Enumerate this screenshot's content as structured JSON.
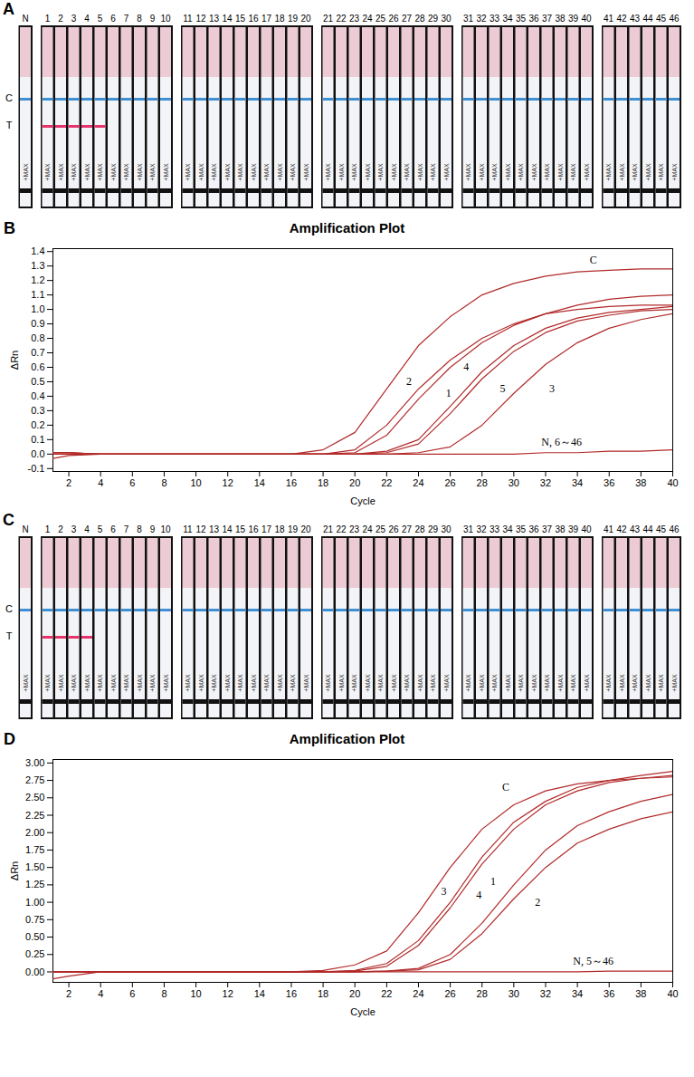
{
  "chart_data": [
    {
      "panel": "A",
      "type": "lateral_flow_strips",
      "line_labels": [
        "C",
        "T"
      ],
      "strip_text": "+MAX",
      "groups": [
        [
          "N"
        ],
        [
          "1",
          "2",
          "3",
          "4",
          "5",
          "6",
          "7",
          "8",
          "9",
          "10"
        ],
        [
          "11",
          "12",
          "13",
          "14",
          "15",
          "16",
          "17",
          "18",
          "19",
          "20"
        ],
        [
          "21",
          "22",
          "23",
          "24",
          "25",
          "26",
          "27",
          "28",
          "29",
          "30"
        ],
        [
          "31",
          "32",
          "33",
          "34",
          "35",
          "36",
          "37",
          "38",
          "39",
          "40"
        ],
        [
          "41",
          "42",
          "43",
          "44",
          "45",
          "46"
        ]
      ],
      "positive": [
        "1",
        "2",
        "3",
        "4",
        "5"
      ]
    },
    {
      "panel": "B",
      "type": "line",
      "title": "Amplification Plot",
      "x_label": "Cycle",
      "y_label": "ΔRn",
      "x": [
        1,
        2,
        4,
        6,
        8,
        10,
        12,
        14,
        16,
        18,
        20,
        22,
        24,
        26,
        28,
        30,
        32,
        34,
        36,
        38,
        40
      ],
      "xlim": [
        1,
        40
      ],
      "xticks": [
        2,
        4,
        6,
        8,
        10,
        12,
        14,
        16,
        18,
        20,
        22,
        24,
        26,
        28,
        30,
        32,
        34,
        36,
        38,
        40
      ],
      "ylim": [
        -0.12,
        1.42
      ],
      "yticks": [
        -0.1,
        {
          "value": 0,
          "label": "0.0"
        },
        0.1,
        0.2,
        0.3,
        0.4,
        0.5,
        0.6,
        0.7,
        0.8,
        0.9,
        {
          "value": 1,
          "label": "1.0"
        },
        1.1,
        1.2,
        1.3,
        1.4
      ],
      "series": [
        {
          "name": "C",
          "color": "#b22a2a",
          "label_x": 35,
          "label_y": 1.34,
          "values": [
            -0.03,
            -0.01,
            0,
            0,
            0,
            0,
            0,
            0,
            0,
            0.03,
            0.15,
            0.45,
            0.75,
            0.95,
            1.1,
            1.18,
            1.23,
            1.26,
            1.27,
            1.28,
            1.28
          ]
        },
        {
          "name": "2",
          "color": "#b22a2a",
          "label_x": 23.4,
          "label_y": 0.5,
          "values": [
            0.01,
            0.01,
            0,
            0,
            0,
            0,
            0,
            0,
            0,
            0,
            0.03,
            0.2,
            0.45,
            0.65,
            0.8,
            0.9,
            0.97,
            1.0,
            1.02,
            1.03,
            1.03
          ]
        },
        {
          "name": "1",
          "color": "#b22a2a",
          "label_x": 25.9,
          "label_y": 0.42,
          "values": [
            0.01,
            0.01,
            0,
            0,
            0,
            0,
            0,
            0,
            0,
            0,
            0.01,
            0.13,
            0.38,
            0.6,
            0.77,
            0.89,
            0.97,
            1.03,
            1.07,
            1.09,
            1.1
          ]
        },
        {
          "name": "4",
          "color": "#b22a2a",
          "label_x": 27.0,
          "label_y": 0.6,
          "values": [
            0,
            0,
            0,
            0,
            0,
            0,
            0,
            0,
            0,
            0,
            0,
            0.02,
            0.1,
            0.33,
            0.57,
            0.75,
            0.87,
            0.94,
            0.98,
            1.0,
            1.02
          ]
        },
        {
          "name": "5",
          "color": "#b22a2a",
          "label_x": 29.3,
          "label_y": 0.45,
          "values": [
            0,
            0,
            0,
            0,
            0,
            0,
            0,
            0,
            0,
            0,
            0,
            0.01,
            0.07,
            0.28,
            0.52,
            0.71,
            0.84,
            0.92,
            0.96,
            0.99,
            1.0
          ]
        },
        {
          "name": "3",
          "color": "#b22a2a",
          "label_x": 32.4,
          "label_y": 0.45,
          "values": [
            0,
            0,
            0,
            0,
            0,
            0,
            0,
            0,
            0,
            0,
            0,
            0,
            0.01,
            0.05,
            0.2,
            0.42,
            0.62,
            0.77,
            0.87,
            0.93,
            0.97
          ]
        },
        {
          "name": "N, 6～46",
          "color": "#b22a2a",
          "label_x": 33,
          "label_y": 0.08,
          "values": [
            0.01,
            0.01,
            0,
            0,
            0,
            0,
            0,
            0,
            0,
            0,
            0,
            0,
            0,
            0,
            0,
            0,
            0.01,
            0.01,
            0.02,
            0.02,
            0.03
          ]
        }
      ]
    },
    {
      "panel": "C",
      "type": "lateral_flow_strips",
      "line_labels": [
        "C",
        "T"
      ],
      "strip_text": "+MAX",
      "groups": [
        [
          "N"
        ],
        [
          "1",
          "2",
          "3",
          "4",
          "5",
          "6",
          "7",
          "8",
          "9",
          "10"
        ],
        [
          "11",
          "12",
          "13",
          "14",
          "15",
          "16",
          "17",
          "18",
          "19",
          "20"
        ],
        [
          "21",
          "22",
          "23",
          "24",
          "25",
          "26",
          "27",
          "28",
          "29",
          "30"
        ],
        [
          "31",
          "32",
          "33",
          "34",
          "35",
          "36",
          "37",
          "38",
          "39",
          "40"
        ],
        [
          "41",
          "42",
          "43",
          "44",
          "45",
          "46"
        ]
      ],
      "positive": [
        "1",
        "2",
        "3",
        "4"
      ]
    },
    {
      "panel": "D",
      "type": "line",
      "title": "Amplification Plot",
      "x_label": "Cycle",
      "y_label": "ΔRn",
      "x": [
        1,
        2,
        4,
        6,
        8,
        10,
        12,
        14,
        16,
        18,
        20,
        22,
        24,
        26,
        28,
        30,
        32,
        34,
        36,
        38,
        40
      ],
      "xlim": [
        1,
        40
      ],
      "xticks": [
        2,
        4,
        6,
        8,
        10,
        12,
        14,
        16,
        18,
        20,
        22,
        24,
        26,
        28,
        30,
        32,
        34,
        36,
        38,
        40
      ],
      "ylim": [
        -0.15,
        3.05
      ],
      "yticks": [
        {
          "value": 0,
          "label": "0.00"
        },
        0.25,
        {
          "value": 0.5,
          "label": "0.50"
        },
        0.75,
        {
          "value": 1,
          "label": "1.00"
        },
        1.25,
        {
          "value": 1.5,
          "label": "1.50"
        },
        1.75,
        {
          "value": 2,
          "label": "2.00"
        },
        2.25,
        {
          "value": 2.5,
          "label": "2.50"
        },
        2.75,
        {
          "value": 3,
          "label": "3.00"
        }
      ],
      "series": [
        {
          "name": "C",
          "color": "#b22a2a",
          "label_x": 29.5,
          "label_y": 2.65,
          "values": [
            -0.1,
            -0.06,
            0,
            0,
            0,
            0,
            0,
            0,
            0,
            0.02,
            0.1,
            0.3,
            0.85,
            1.5,
            2.05,
            2.4,
            2.6,
            2.7,
            2.75,
            2.78,
            2.8
          ]
        },
        {
          "name": "3",
          "color": "#b22a2a",
          "label_x": 25.6,
          "label_y": 1.15,
          "values": [
            0,
            0,
            0,
            0,
            0,
            0,
            0,
            0,
            0,
            0,
            0.02,
            0.12,
            0.45,
            1.0,
            1.65,
            2.15,
            2.45,
            2.65,
            2.75,
            2.82,
            2.88
          ]
        },
        {
          "name": "4",
          "color": "#b22a2a",
          "label_x": 27.8,
          "label_y": 1.1,
          "values": [
            0,
            0,
            0,
            0,
            0,
            0,
            0,
            0,
            0,
            0,
            0.01,
            0.08,
            0.38,
            0.92,
            1.55,
            2.05,
            2.4,
            2.6,
            2.72,
            2.78,
            2.82
          ]
        },
        {
          "name": "1",
          "color": "#b22a2a",
          "label_x": 28.7,
          "label_y": 1.3,
          "values": [
            0,
            0,
            0,
            0,
            0,
            0,
            0,
            0,
            0,
            0,
            0,
            0.01,
            0.05,
            0.25,
            0.7,
            1.25,
            1.75,
            2.1,
            2.3,
            2.45,
            2.55
          ]
        },
        {
          "name": "2",
          "color": "#b22a2a",
          "label_x": 31.5,
          "label_y": 1.0,
          "values": [
            0,
            0,
            0,
            0,
            0,
            0,
            0,
            0,
            0,
            0,
            0,
            0.01,
            0.03,
            0.18,
            0.55,
            1.05,
            1.5,
            1.85,
            2.05,
            2.2,
            2.3
          ]
        },
        {
          "name": "N, 5～46",
          "color": "#b22a2a",
          "label_x": 35,
          "label_y": 0.15,
          "values": [
            0,
            0,
            0,
            0,
            0,
            0,
            0,
            0,
            0,
            0,
            0,
            0,
            0,
            0,
            0,
            0,
            0,
            0,
            0.01,
            0.01,
            0.01
          ]
        }
      ]
    }
  ]
}
